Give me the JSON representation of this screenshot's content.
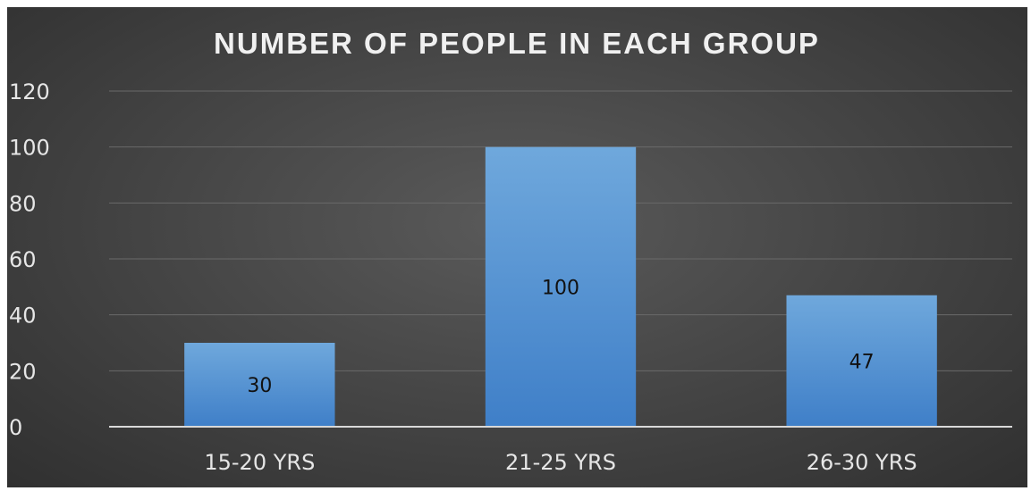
{
  "chart_data": {
    "type": "bar",
    "title": "NUMBER OF PEOPLE IN EACH GROUP",
    "categories": [
      "15-20 YRS",
      "21-25 YRS",
      "26-30 YRS"
    ],
    "values": [
      30,
      100,
      47
    ],
    "data_labels": [
      "30",
      "100",
      "47"
    ],
    "ylim": [
      0,
      120
    ],
    "yticks": [
      0,
      20,
      40,
      60,
      80,
      100,
      120
    ],
    "xlabel": "",
    "ylabel": "",
    "grid": true,
    "legend": "none",
    "bar_color": "#5b9bd5",
    "background_color": "#404040"
  }
}
